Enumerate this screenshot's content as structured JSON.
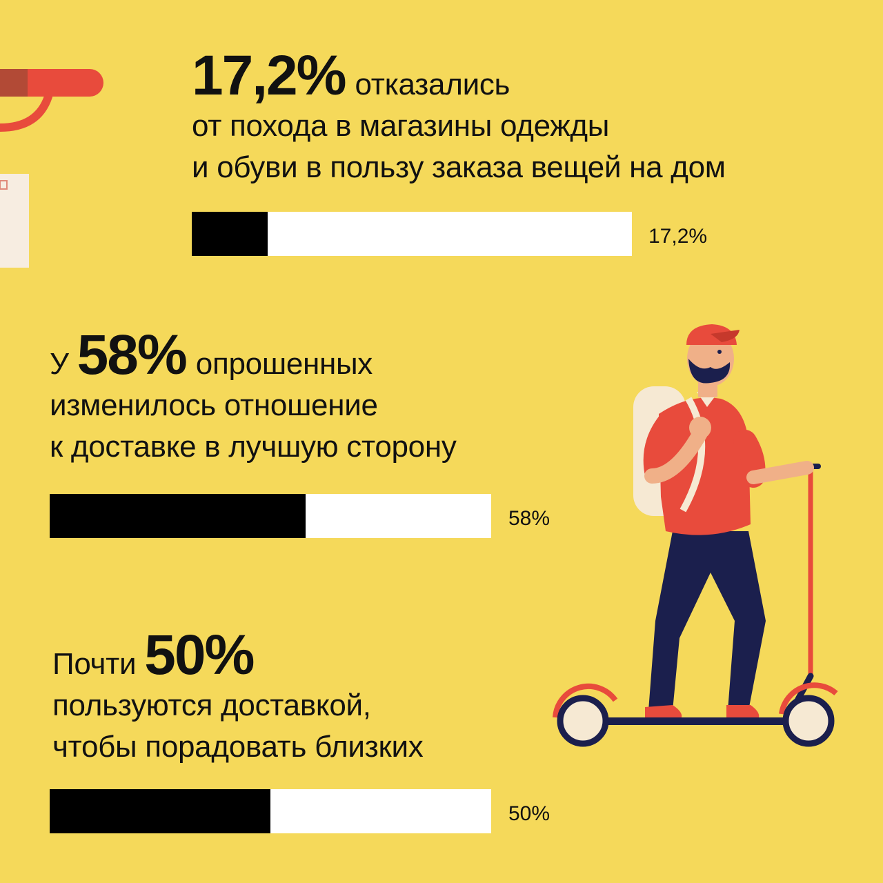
{
  "colors": {
    "background": "#F5D95A",
    "bar_track": "#FFFFFF",
    "bar_fill": "#000000",
    "accent_red": "#E84B3C",
    "pants_navy": "#1B1F4D"
  },
  "stats": [
    {
      "prefix": "",
      "value_label": "17,2%",
      "suffix": "отказались",
      "lines": [
        "от похода в магазины одежды",
        "и обуви в пользу заказа вещей на дом"
      ],
      "bar_label": "17,2%"
    },
    {
      "prefix": "У",
      "value_label": "58%",
      "suffix": "опрошенных",
      "lines": [
        "изменилось отношение",
        "к доставке в лучшую сторону"
      ],
      "bar_label": "58%"
    },
    {
      "prefix": "Почти",
      "value_label": "50%",
      "suffix": "",
      "lines": [
        "пользуются доставкой,",
        "чтобы порадовать близких"
      ],
      "bar_label": "50%"
    }
  ],
  "chart_data": {
    "type": "bar",
    "orientation": "horizontal",
    "categories": [
      "отказались от похода в магазины одежды и обуви в пользу заказа вещей на дом",
      "изменилось отношение к доставке в лучшую сторону",
      "пользуются доставкой, чтобы порадовать близких"
    ],
    "values": [
      17.2,
      58,
      50
    ],
    "value_labels": [
      "17,2%",
      "58%",
      "50%"
    ],
    "xlim": [
      0,
      100
    ],
    "grid": false,
    "legend": "none"
  },
  "icons": [
    "courier-on-scooter-illustration",
    "scooter-handle-partial-icon",
    "parcel-box-partial-icon"
  ]
}
